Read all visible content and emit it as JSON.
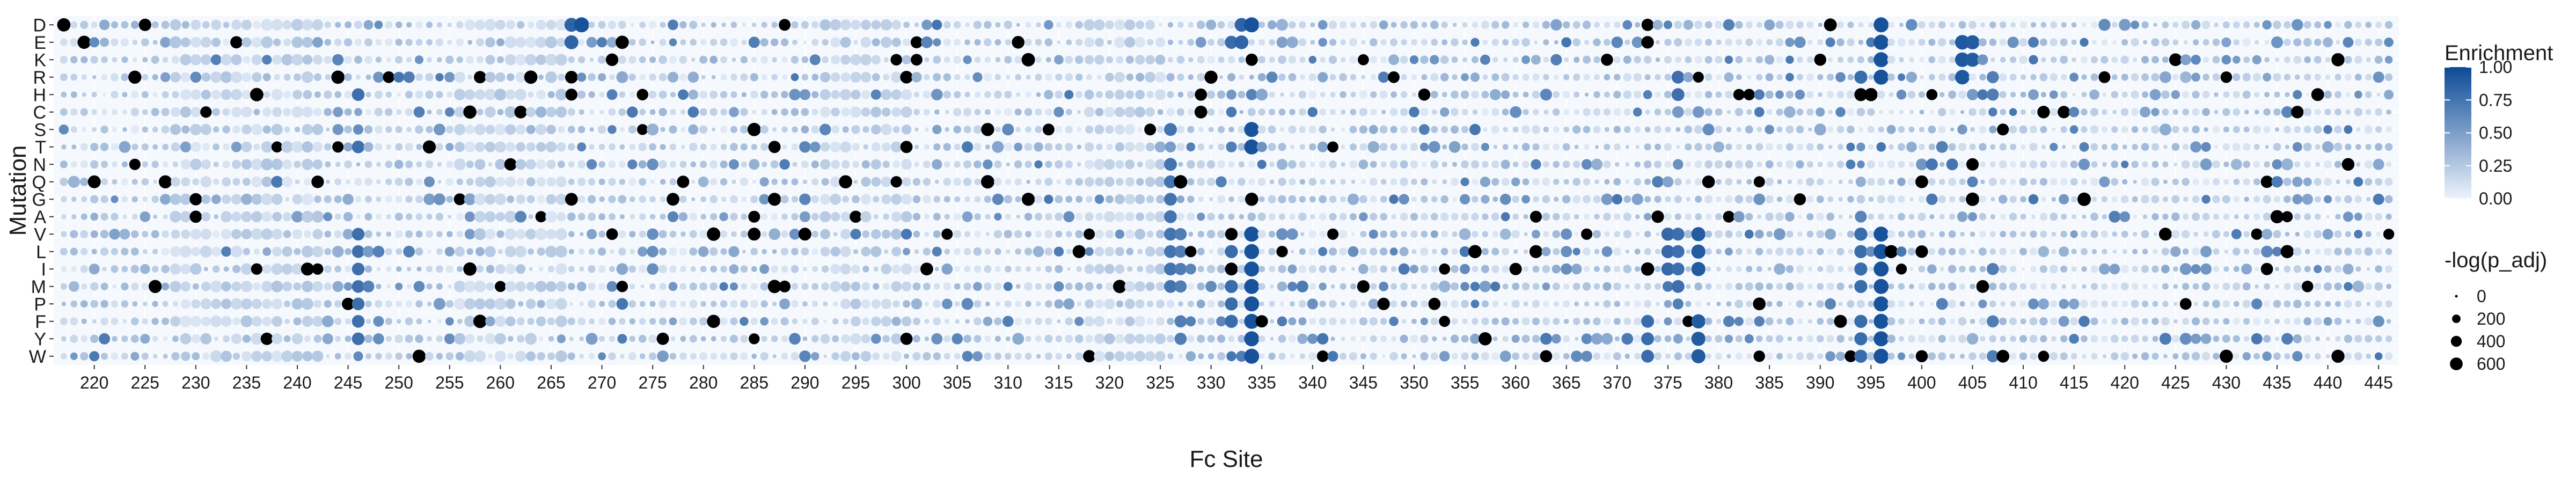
{
  "chart_data": {
    "type": "scatter",
    "title": "",
    "xlabel": "Fc Site",
    "ylabel": "Mutation",
    "x_range": [
      216,
      447
    ],
    "x_ticks": [
      "220",
      "225",
      "230",
      "235",
      "240",
      "245",
      "250",
      "255",
      "260",
      "265",
      "270",
      "275",
      "280",
      "285",
      "290",
      "295",
      "300",
      "305",
      "310",
      "315",
      "320",
      "325",
      "330",
      "335",
      "340",
      "345",
      "350",
      "355",
      "360",
      "365",
      "370",
      "375",
      "380",
      "385",
      "390",
      "395",
      "400",
      "405",
      "410",
      "415",
      "420",
      "425",
      "430",
      "435",
      "440",
      "445"
    ],
    "mutations": [
      "D",
      "E",
      "K",
      "R",
      "H",
      "C",
      "S",
      "T",
      "N",
      "Q",
      "G",
      "A",
      "V",
      "L",
      "I",
      "M",
      "P",
      "F",
      "Y",
      "W"
    ],
    "grid": true,
    "panel_background": "#f5f9fd",
    "color_scale": {
      "title": "Enrichment",
      "low": "#edf3fb",
      "high": "#0c4a96",
      "ticks": [
        "1.00",
        "0.75",
        "0.50",
        "0.25",
        "0.00"
      ]
    },
    "size_scale": {
      "title": "-log(p_adj)",
      "ticks": [
        "0",
        "200",
        "400",
        "600"
      ]
    },
    "saturated_color": "#000000",
    "legend_position": "right",
    "hotspots": [
      {
        "site": 246,
        "rows": [
          "H",
          "T",
          "V",
          "L",
          "I",
          "M",
          "P",
          "F",
          "Y"
        ],
        "enrichment": 0.78,
        "neglog_p": 380
      },
      {
        "site": 267,
        "rows": [
          "D",
          "E"
        ],
        "enrichment": 0.85,
        "neglog_p": 500
      },
      {
        "site": 268,
        "rows": [
          "D"
        ],
        "enrichment": 0.95,
        "neglog_p": 600
      },
      {
        "site": 275,
        "rows": [
          "N",
          "V",
          "L",
          "I"
        ],
        "enrichment": 0.6,
        "neglog_p": 300
      },
      {
        "site": 290,
        "rows": [
          "T",
          "G",
          "W"
        ],
        "enrichment": 0.65,
        "neglog_p": 300
      },
      {
        "site": 326,
        "rows": [
          "S",
          "N",
          "Q",
          "G",
          "A",
          "V",
          "L",
          "I",
          "M"
        ],
        "enrichment": 0.75,
        "neglog_p": 400
      },
      {
        "site": 327,
        "rows": [
          "V",
          "L",
          "I",
          "M",
          "F",
          "Y"
        ],
        "enrichment": 0.7,
        "neglog_p": 350
      },
      {
        "site": 332,
        "rows": [
          "E",
          "L",
          "M",
          "P",
          "F"
        ],
        "enrichment": 0.8,
        "neglog_p": 420
      },
      {
        "site": 333,
        "rows": [
          "D",
          "E"
        ],
        "enrichment": 0.85,
        "neglog_p": 480
      },
      {
        "site": 334,
        "rows": [
          "D",
          "S",
          "T",
          "V",
          "L",
          "I",
          "M",
          "P",
          "F",
          "Y",
          "W"
        ],
        "enrichment": 0.95,
        "neglog_p": 600
      },
      {
        "site": 365,
        "rows": [
          "V",
          "L",
          "I"
        ],
        "enrichment": 0.6,
        "neglog_p": 280
      },
      {
        "site": 373,
        "rows": [
          "F",
          "Y",
          "W"
        ],
        "enrichment": 0.8,
        "neglog_p": 400
      },
      {
        "site": 375,
        "rows": [
          "V",
          "L",
          "I"
        ],
        "enrichment": 0.82,
        "neglog_p": 420
      },
      {
        "site": 376,
        "rows": [
          "R",
          "H",
          "V",
          "L",
          "I",
          "M"
        ],
        "enrichment": 0.78,
        "neglog_p": 400
      },
      {
        "site": 378,
        "rows": [
          "V",
          "L",
          "I",
          "F",
          "Y",
          "W"
        ],
        "enrichment": 0.9,
        "neglog_p": 520
      },
      {
        "site": 394,
        "rows": [
          "R",
          "V",
          "L",
          "I",
          "M",
          "F",
          "Y",
          "W"
        ],
        "enrichment": 0.8,
        "neglog_p": 420
      },
      {
        "site": 396,
        "rows": [
          "D",
          "E",
          "K",
          "R",
          "V",
          "L",
          "I",
          "M",
          "P",
          "F",
          "Y",
          "W"
        ],
        "enrichment": 0.95,
        "neglog_p": 600
      },
      {
        "site": 404,
        "rows": [
          "E",
          "K",
          "R"
        ],
        "enrichment": 0.92,
        "neglog_p": 560
      },
      {
        "site": 405,
        "rows": [
          "E",
          "K"
        ],
        "enrichment": 0.9,
        "neglog_p": 520
      },
      {
        "site": 407,
        "rows": [
          "R",
          "H",
          "I",
          "F",
          "W"
        ],
        "enrichment": 0.7,
        "neglog_p": 340
      }
    ],
    "light_bands": [
      {
        "from": 228,
        "to": 242,
        "enrichment": 0.15,
        "neglog_p": 300
      },
      {
        "from": 256,
        "to": 266,
        "enrichment": 0.15,
        "neglog_p": 300
      },
      {
        "from": 292,
        "to": 300,
        "enrichment": 0.15,
        "neglog_p": 260
      },
      {
        "from": 318,
        "to": 325,
        "enrichment": 0.15,
        "neglog_p": 240
      }
    ]
  }
}
